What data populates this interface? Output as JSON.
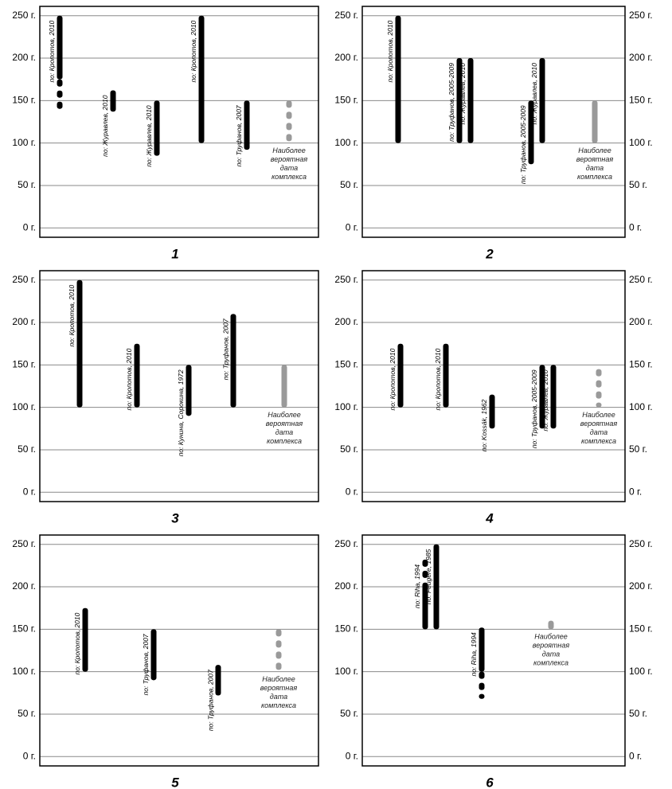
{
  "chart_data": [
    {
      "type": "range",
      "label": "1",
      "ylim": [
        -11,
        261
      ],
      "yticks": [
        {
          "value": 0,
          "label": "0 г."
        },
        {
          "value": 50,
          "label": "50 г."
        },
        {
          "value": 100,
          "label": "100 г."
        },
        {
          "value": 150,
          "label": "150 г."
        },
        {
          "value": 200,
          "label": "200 г."
        },
        {
          "value": 250,
          "label": "250 г."
        }
      ],
      "series": [
        {
          "name": "по: Кропотов, 2010",
          "color": "#000000",
          "values": [
            135,
            250
          ],
          "dotted": [
            135,
            175
          ]
        },
        {
          "name": "по: Журавлев, 2010",
          "color": "#000000",
          "values": [
            137,
            162
          ]
        },
        {
          "name": "по: Журавлев, 2010",
          "color": "#000000",
          "values": [
            85,
            150
          ]
        },
        {
          "name": "по: Кропотов, 2010",
          "color": "#000000",
          "values": [
            100,
            250
          ]
        },
        {
          "name": "по: Труфанов, 2007",
          "color": "#000000",
          "values": [
            92,
            150
          ]
        },
        {
          "name_lines": [
            "Наиболее",
            "вероятная",
            "дата",
            "комплекса"
          ],
          "color": "#9a9a9a",
          "values": [
            100,
            150
          ],
          "style": "dotted"
        }
      ]
    },
    {
      "type": "range",
      "label": "2",
      "ylim": [
        -11,
        261
      ],
      "yticks": [
        {
          "value": 0,
          "label": "0 г."
        },
        {
          "value": 50,
          "label": "50 г."
        },
        {
          "value": 100,
          "label": "100 г."
        },
        {
          "value": 150,
          "label": "150 г."
        },
        {
          "value": 200,
          "label": "200 г."
        },
        {
          "value": 250,
          "label": "250 г."
        }
      ],
      "series": [
        {
          "name": "по: Кропотов, 2010",
          "color": "#000000",
          "values": [
            100,
            250
          ]
        },
        {
          "name": "по: Труфанов, 2005-2009",
          "color": "#000000",
          "values": [
            100,
            200
          ]
        },
        {
          "name": "по: Журавлев, 2010",
          "color": "#000000",
          "values": [
            100,
            200
          ]
        },
        {
          "name": "по: Труфанов, 2005-2009",
          "color": "#000000",
          "values": [
            75,
            150
          ]
        },
        {
          "name": "по: Журавлев, 2010",
          "color": "#000000",
          "values": [
            100,
            200
          ]
        },
        {
          "name_lines": [
            "Наиболее",
            "вероятная",
            "дата",
            "комплекса"
          ],
          "color": "#9a9a9a",
          "values": [
            100,
            150
          ]
        }
      ]
    },
    {
      "type": "range",
      "label": "3",
      "ylim": [
        -11,
        261
      ],
      "yticks": [
        {
          "value": 0,
          "label": "0 г."
        },
        {
          "value": 50,
          "label": "50 г."
        },
        {
          "value": 100,
          "label": "100 г."
        },
        {
          "value": 150,
          "label": "150 г."
        },
        {
          "value": 200,
          "label": "200 г."
        },
        {
          "value": 250,
          "label": "250 г."
        }
      ],
      "series": [
        {
          "name": "по: Кропотов, 2010",
          "color": "#000000",
          "values": [
            100,
            250
          ]
        },
        {
          "name": "по: Кропотов, 2010",
          "color": "#000000",
          "values": [
            100,
            175
          ]
        },
        {
          "name": "по: Кунина, Сорокина, 1972",
          "color": "#000000",
          "values": [
            90,
            150
          ]
        },
        {
          "name": "по: Труфанов, 2007",
          "color": "#000000",
          "values": [
            100,
            210
          ]
        },
        {
          "name_lines": [
            "Наиболее",
            "вероятная",
            "дата",
            "комплекса"
          ],
          "color": "#9a9a9a",
          "values": [
            100,
            150
          ]
        }
      ]
    },
    {
      "type": "range",
      "label": "4",
      "ylim": [
        -11,
        261
      ],
      "yticks": [
        {
          "value": 0,
          "label": "0 г."
        },
        {
          "value": 50,
          "label": "50 г."
        },
        {
          "value": 100,
          "label": "100 г."
        },
        {
          "value": 150,
          "label": "150 г."
        },
        {
          "value": 200,
          "label": "200 г."
        },
        {
          "value": 250,
          "label": "250 г."
        }
      ],
      "series": [
        {
          "name": "по: Кропотов, 2010",
          "color": "#000000",
          "values": [
            100,
            175
          ]
        },
        {
          "name": "по: Кропотов, 2010",
          "color": "#000000",
          "values": [
            100,
            175
          ]
        },
        {
          "name": "по: Kossák, 1962",
          "color": "#000000",
          "values": [
            75,
            115
          ]
        },
        {
          "name": "по: Труфанов, 2005-2009",
          "color": "#000000",
          "values": [
            75,
            150
          ]
        },
        {
          "name": "по: Журавлев, 2010",
          "color": "#000000",
          "values": [
            75,
            150
          ]
        },
        {
          "name_lines": [
            "Наиболее",
            "вероятная",
            "дата",
            "комплекса"
          ],
          "color": "#9a9a9a",
          "values": [
            100,
            145
          ],
          "style": "dotted"
        }
      ]
    },
    {
      "type": "range",
      "label": "5",
      "ylim": [
        -11,
        261
      ],
      "yticks": [
        {
          "value": 0,
          "label": "0 г."
        },
        {
          "value": 50,
          "label": "50 г."
        },
        {
          "value": 100,
          "label": "100 г."
        },
        {
          "value": 150,
          "label": "150 г."
        },
        {
          "value": 200,
          "label": "200 г."
        },
        {
          "value": 250,
          "label": "250 г."
        }
      ],
      "series": [
        {
          "name": "по: Кропотов, 2010",
          "color": "#000000",
          "values": [
            100,
            175
          ]
        },
        {
          "name": "по: Труфанов, 2007",
          "color": "#000000",
          "values": [
            90,
            150
          ]
        },
        {
          "name": "по: Труфанов, 2007",
          "color": "#000000",
          "values": [
            72,
            108
          ]
        },
        {
          "name_lines": [
            "Наиболее",
            "вероятная",
            "дата",
            "комплекса"
          ],
          "color": "#9a9a9a",
          "values": [
            100,
            150
          ],
          "style": "dotted"
        }
      ]
    },
    {
      "type": "range",
      "label": "6",
      "ylim": [
        -11,
        261
      ],
      "yticks": [
        {
          "value": 0,
          "label": "0 г."
        },
        {
          "value": 50,
          "label": "50 г."
        },
        {
          "value": 100,
          "label": "100 г."
        },
        {
          "value": 150,
          "label": "150 г."
        },
        {
          "value": 200,
          "label": "200 г."
        },
        {
          "value": 250,
          "label": "250 г."
        }
      ],
      "series": [
        {
          "name": "по: Riha, 1994",
          "color": "#000000",
          "values": [
            150,
            232
          ],
          "dotted": [
            205,
            232
          ]
        },
        {
          "name": "по: Feugère, 1985",
          "color": "#000000",
          "values": [
            150,
            250
          ]
        },
        {
          "name": "по: Riha, 1994",
          "color": "#000000",
          "values": [
            68,
            152
          ],
          "dotted": [
            68,
            100
          ]
        },
        {
          "name_lines": [
            "Наиболее",
            "вероятная",
            "дата",
            "комплекса"
          ],
          "color": "#9a9a9a",
          "values": [
            150,
            160
          ]
        }
      ]
    }
  ]
}
